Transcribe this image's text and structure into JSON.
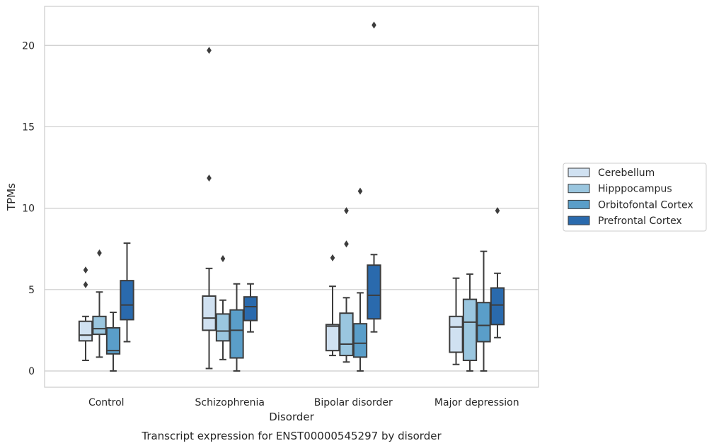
{
  "chart_data": {
    "type": "box",
    "title": "",
    "caption": "Transcript expression for ENST00000545297 by disorder",
    "xlabel": "Disorder",
    "ylabel": "TPMs",
    "ylim": [
      -1,
      22.4
    ],
    "yticks": [
      0,
      5,
      10,
      15,
      20
    ],
    "grid": "horizontal",
    "legend_position": "right",
    "categories": [
      "Control",
      "Schizophrenia",
      "Bipolar disorder",
      "Major depression"
    ],
    "series": [
      {
        "name": "Cerebellum",
        "color": "#d0e1f1",
        "boxes": [
          {
            "min": 0.65,
            "q1": 1.85,
            "median": 2.2,
            "q3": 3.05,
            "max": 3.35,
            "outliers": [
              5.3,
              6.2
            ]
          },
          {
            "min": 0.15,
            "q1": 2.5,
            "median": 3.25,
            "q3": 4.6,
            "max": 6.3,
            "outliers": [
              11.85,
              19.7
            ]
          },
          {
            "min": 0.95,
            "q1": 1.25,
            "median": 2.75,
            "q3": 2.85,
            "max": 5.2,
            "outliers": [
              6.95
            ]
          },
          {
            "min": 0.4,
            "q1": 1.15,
            "median": 2.7,
            "q3": 3.35,
            "max": 5.7,
            "outliers": []
          }
        ]
      },
      {
        "name": "Hipppocampus",
        "color": "#9ac6df",
        "boxes": [
          {
            "min": 0.85,
            "q1": 2.25,
            "median": 2.6,
            "q3": 3.35,
            "max": 4.85,
            "outliers": [
              7.25
            ]
          },
          {
            "min": 0.7,
            "q1": 1.85,
            "median": 2.45,
            "q3": 3.5,
            "max": 4.35,
            "outliers": [
              6.9
            ]
          },
          {
            "min": 0.55,
            "q1": 0.95,
            "median": 1.65,
            "q3": 3.55,
            "max": 4.5,
            "outliers": [
              7.8,
              9.85
            ]
          },
          {
            "min": 0.0,
            "q1": 0.65,
            "median": 3.0,
            "q3": 4.4,
            "max": 5.95,
            "outliers": []
          }
        ]
      },
      {
        "name": "Orbitofontal Cortex",
        "color": "#5a9ec9",
        "boxes": [
          {
            "min": 0.0,
            "q1": 1.05,
            "median": 1.25,
            "q3": 2.65,
            "max": 3.6,
            "outliers": []
          },
          {
            "min": 0.0,
            "q1": 0.8,
            "median": 2.5,
            "q3": 3.75,
            "max": 5.35,
            "outliers": []
          },
          {
            "min": 0.0,
            "q1": 0.85,
            "median": 1.7,
            "q3": 2.9,
            "max": 4.8,
            "outliers": [
              11.05
            ]
          },
          {
            "min": 0.0,
            "q1": 1.8,
            "median": 2.8,
            "q3": 4.2,
            "max": 7.35,
            "outliers": []
          }
        ]
      },
      {
        "name": "Prefrontal Cortex",
        "color": "#2a6aad",
        "boxes": [
          {
            "min": 1.8,
            "q1": 3.15,
            "median": 4.05,
            "q3": 5.55,
            "max": 7.85,
            "outliers": []
          },
          {
            "min": 2.4,
            "q1": 3.1,
            "median": 3.95,
            "q3": 4.55,
            "max": 5.35,
            "outliers": []
          },
          {
            "min": 2.4,
            "q1": 3.2,
            "median": 4.65,
            "q3": 6.5,
            "max": 7.15,
            "outliers": [
              21.25
            ]
          },
          {
            "min": 2.05,
            "q1": 2.85,
            "median": 4.05,
            "q3": 5.1,
            "max": 6.0,
            "outliers": [
              9.85
            ]
          }
        ]
      }
    ]
  }
}
